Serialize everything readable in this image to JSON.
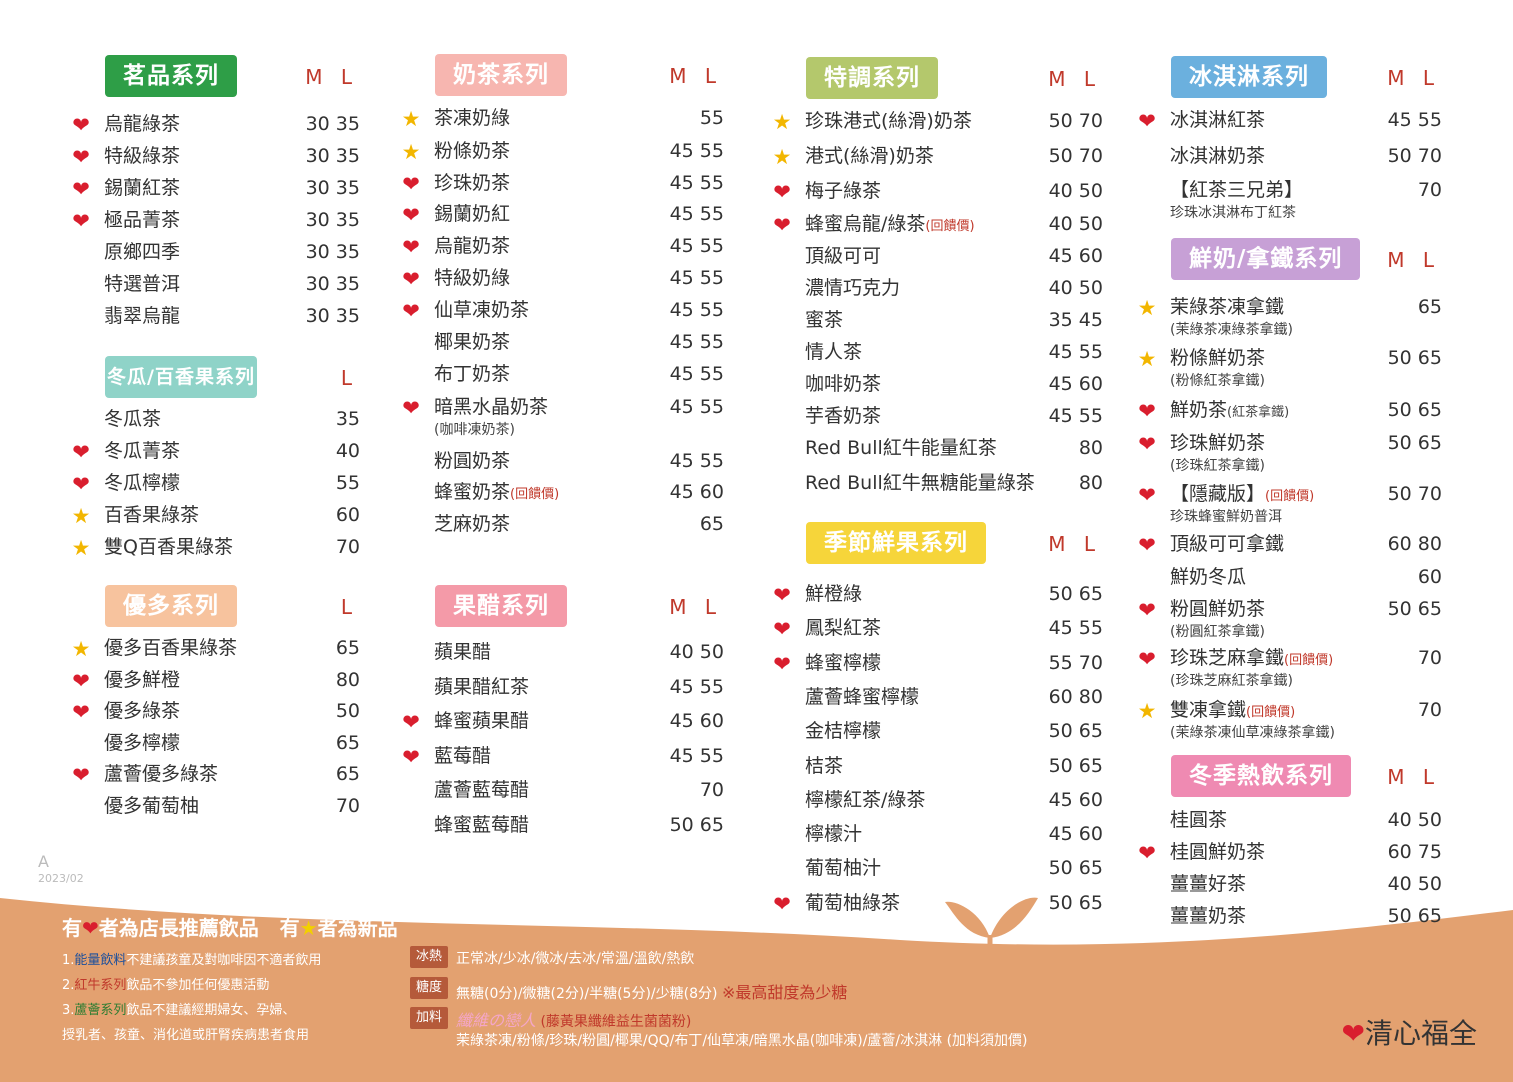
{
  "version": {
    "letter": "A",
    "date": "2023/02"
  },
  "colors": {
    "heart": "#d91e2e",
    "star": "#f2b600",
    "price": "#333333",
    "bottom_band": "#e3a170"
  },
  "sections": {
    "tea": {
      "title": "茗品系列",
      "sizes": "M L",
      "items": [
        {
          "mark": "heart",
          "name": "烏龍綠茶",
          "price": "30 35"
        },
        {
          "mark": "heart",
          "name": "特級綠茶",
          "price": "30 35"
        },
        {
          "mark": "heart",
          "name": "錫蘭紅茶",
          "price": "30 35"
        },
        {
          "mark": "heart",
          "name": "極品菁茶",
          "price": "30 35"
        },
        {
          "mark": "",
          "name": "原鄉四季",
          "price": "30 35"
        },
        {
          "mark": "",
          "name": "特選普洱",
          "price": "30 35"
        },
        {
          "mark": "",
          "name": "翡翠烏龍",
          "price": "30 35"
        }
      ]
    },
    "wintermelon": {
      "title": "冬瓜/百香果系列",
      "sizes": "L",
      "items": [
        {
          "mark": "",
          "name": "冬瓜茶",
          "price": "35"
        },
        {
          "mark": "heart",
          "name": "冬瓜菁茶",
          "price": "40"
        },
        {
          "mark": "heart",
          "name": "冬瓜檸檬",
          "price": "55"
        },
        {
          "mark": "star",
          "name": "百香果綠茶",
          "price": "60"
        },
        {
          "mark": "star",
          "name": "雙Q百香果綠茶",
          "price": "70"
        }
      ]
    },
    "yakult": {
      "title": "優多系列",
      "sizes": "L",
      "items": [
        {
          "mark": "star",
          "name": "優多百香果綠茶",
          "price": "65"
        },
        {
          "mark": "heart",
          "name": "優多鮮橙",
          "price": "80"
        },
        {
          "mark": "heart",
          "name": "優多綠茶",
          "price": "50"
        },
        {
          "mark": "",
          "name": "優多檸檬",
          "price": "65"
        },
        {
          "mark": "heart",
          "name": "蘆薈優多綠茶",
          "price": "65"
        },
        {
          "mark": "",
          "name": "優多葡萄柚",
          "price": "70"
        }
      ]
    },
    "milktea": {
      "title": "奶茶系列",
      "sizes": "M L",
      "items": [
        {
          "mark": "star",
          "name": "茶凍奶綠",
          "price": "55"
        },
        {
          "mark": "star",
          "name": "粉條奶茶",
          "price": "45 55"
        },
        {
          "mark": "heart",
          "name": "珍珠奶茶",
          "price": "45 55"
        },
        {
          "mark": "heart",
          "name": "錫蘭奶紅",
          "price": "45 55"
        },
        {
          "mark": "heart",
          "name": "烏龍奶茶",
          "price": "45 55"
        },
        {
          "mark": "heart",
          "name": "特級奶綠",
          "price": "45 55"
        },
        {
          "mark": "heart",
          "name": "仙草凍奶茶",
          "price": "45 55"
        },
        {
          "mark": "",
          "name": "椰果奶茶",
          "price": "45 55"
        },
        {
          "mark": "",
          "name": "布丁奶茶",
          "price": "45 55"
        },
        {
          "mark": "heart",
          "name": "暗黑水晶奶茶",
          "sub": "(咖啡凍奶茶)",
          "price": "45 55"
        },
        {
          "mark": "",
          "name": "粉圓奶茶",
          "price": "45 55"
        },
        {
          "mark": "",
          "name": "蜂蜜奶茶",
          "hl": "(回饋價)",
          "price": "45 60"
        },
        {
          "mark": "",
          "name": "芝麻奶茶",
          "price": "65"
        }
      ]
    },
    "vinegar": {
      "title": "果醋系列",
      "sizes": "M L",
      "items": [
        {
          "mark": "",
          "name": "蘋果醋",
          "price": "40 50"
        },
        {
          "mark": "",
          "name": "蘋果醋紅茶",
          "price": "45 55"
        },
        {
          "mark": "heart",
          "name": "蜂蜜蘋果醋",
          "price": "45 60"
        },
        {
          "mark": "heart",
          "name": "藍莓醋",
          "price": "45 55"
        },
        {
          "mark": "",
          "name": "蘆薈藍莓醋",
          "price": "70"
        },
        {
          "mark": "",
          "name": "蜂蜜藍莓醋",
          "price": "50 65"
        }
      ]
    },
    "special": {
      "title": "特調系列",
      "sizes": "M L",
      "items": [
        {
          "mark": "star",
          "name": "珍珠港式(絲滑)奶茶",
          "price": "50 70"
        },
        {
          "mark": "star",
          "name": "港式(絲滑)奶茶",
          "price": "50 70"
        },
        {
          "mark": "heart",
          "name": "梅子綠茶",
          "price": "40 50"
        },
        {
          "mark": "heart",
          "name": "蜂蜜烏龍/綠茶",
          "hl": "(回饋價)",
          "price": "40 50"
        },
        {
          "mark": "",
          "name": "頂級可可",
          "price": "45 60"
        },
        {
          "mark": "",
          "name": "濃情巧克力",
          "price": "40 50"
        },
        {
          "mark": "",
          "name": "蜜茶",
          "price": "35 45"
        },
        {
          "mark": "",
          "name": "情人茶",
          "price": "45 55"
        },
        {
          "mark": "",
          "name": "咖啡奶茶",
          "price": "45 60"
        },
        {
          "mark": "",
          "name": "芋香奶茶",
          "price": "45 55"
        },
        {
          "mark": "",
          "name": "Red Bull紅牛能量紅茶",
          "price": "80"
        },
        {
          "mark": "",
          "name": "Red Bull紅牛無糖能量綠茶",
          "price": "80"
        }
      ]
    },
    "fruit": {
      "title": "季節鮮果系列",
      "sizes": "M L",
      "items": [
        {
          "mark": "heart",
          "name": "鮮橙綠",
          "price": "50 65"
        },
        {
          "mark": "heart",
          "name": "鳳梨紅茶",
          "price": "45 55"
        },
        {
          "mark": "heart",
          "name": "蜂蜜檸檬",
          "price": "55 70"
        },
        {
          "mark": "",
          "name": "蘆薈蜂蜜檸檬",
          "price": "60 80"
        },
        {
          "mark": "",
          "name": "金桔檸檬",
          "price": "50 65"
        },
        {
          "mark": "",
          "name": "桔茶",
          "price": "50 65"
        },
        {
          "mark": "",
          "name": "檸檬紅茶/綠茶",
          "price": "45 60"
        },
        {
          "mark": "",
          "name": "檸檬汁",
          "price": "45 60"
        },
        {
          "mark": "",
          "name": "葡萄柚汁",
          "price": "50 65"
        },
        {
          "mark": "heart",
          "name": "葡萄柚綠茶",
          "price": "50 65"
        }
      ]
    },
    "icecream": {
      "title": "冰淇淋系列",
      "sizes": "M L",
      "items": [
        {
          "mark": "heart",
          "name": "冰淇淋紅茶",
          "price": "45 55"
        },
        {
          "mark": "",
          "name": "冰淇淋奶茶",
          "price": "50 70"
        },
        {
          "mark": "",
          "name": "【紅茶三兄弟】",
          "sub": "珍珠冰淇淋布丁紅茶",
          "price": "70"
        }
      ]
    },
    "latte": {
      "title": "鮮奶/拿鐵系列",
      "sizes": "M L",
      "items": [
        {
          "mark": "star",
          "name": "茉綠茶凍拿鐵",
          "sub": "(茉綠茶凍綠茶拿鐵)",
          "price": "65"
        },
        {
          "mark": "star",
          "name": "粉條鮮奶茶",
          "sub": "(粉條紅茶拿鐵)",
          "price": "50 65"
        },
        {
          "mark": "heart",
          "name": "鮮奶茶",
          "sm": "(紅茶拿鐵)",
          "price": "50 65"
        },
        {
          "mark": "heart",
          "name": "珍珠鮮奶茶",
          "sub": "(珍珠紅茶拿鐵)",
          "price": "50 65"
        },
        {
          "mark": "heart",
          "name": "【隱藏版】",
          "hl": "(回饋價)",
          "sub": "珍珠蜂蜜鮮奶普洱",
          "price": "50 70"
        },
        {
          "mark": "heart",
          "name": "頂級可可拿鐵",
          "price": "60 80"
        },
        {
          "mark": "",
          "name": "鮮奶冬瓜",
          "price": "60"
        },
        {
          "mark": "heart",
          "name": "粉圓鮮奶茶",
          "sub": "(粉圓紅茶拿鐵)",
          "price": "50 65"
        },
        {
          "mark": "heart",
          "name": "珍珠芝麻拿鐵",
          "hl": "(回饋價)",
          "sub": "(珍珠芝麻紅茶拿鐵)",
          "price": "70"
        },
        {
          "mark": "star",
          "name": "雙凍拿鐵",
          "hl": "(回饋價)",
          "sub": "(茉綠茶凍仙草凍綠茶拿鐵)",
          "price": "70"
        }
      ]
    },
    "hot": {
      "title": "冬季熱飲系列",
      "sizes": "M L",
      "items": [
        {
          "mark": "",
          "name": "桂圓茶",
          "price": "40 50"
        },
        {
          "mark": "heart",
          "name": "桂圓鮮奶茶",
          "price": "60 75"
        },
        {
          "mark": "",
          "name": "薑薑好茶",
          "price": "40 50"
        },
        {
          "mark": "",
          "name": "薑薑奶茶",
          "price": "50 65"
        }
      ]
    }
  },
  "legend": {
    "p1": "有",
    "p2": "者為店長推薦飲品",
    "p3": "有",
    "p4": "者為新品"
  },
  "notes": [
    {
      "num": "1.",
      "hl": "能量飲料",
      "rest": "不建議孩童及對咖啡因不適者飲用"
    },
    {
      "num": "2.",
      "hl": "紅牛系列",
      "rest": "飲品不參加任何優惠活動"
    },
    {
      "num": "3.",
      "hl": "蘆薈系列",
      "rest": "飲品不建議經期婦女、孕婦、"
    },
    {
      "num": "",
      "hl": "",
      "rest": "授乳者、孩童、消化道或肝腎疾病患者食用"
    }
  ],
  "options": {
    "ice": {
      "tag": "冰熱",
      "text": "正常冰/少冰/微冰/去冰/常溫/溫飲/熱飲"
    },
    "sugar": {
      "tag": "糖度",
      "text": "無糖(0分)/微糖(2分)/半糖(5分)/少糖(8分)",
      "note": "※最高甜度為少糖"
    },
    "topping": {
      "tag": "加料",
      "brand": "纖維の戀人",
      "brand_note": "(藤黃果纖維益生菌菌粉)",
      "list": "茉綠茶凍/粉條/珍珠/粉圓/椰果/QQ/布丁/仙草凍/暗黑水晶(咖啡凍)/蘆薈/冰淇淋 (加料須加價)"
    }
  },
  "brand": "清心福全"
}
